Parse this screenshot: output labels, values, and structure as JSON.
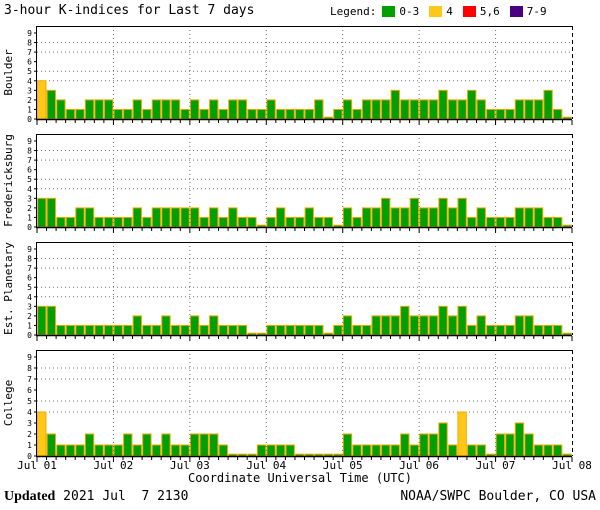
{
  "chart_data": {
    "type": "bar",
    "title": "3-hour K-indices for Last 7 days",
    "xlabel": "Coordinate Universal Time (UTC)",
    "x_tick_labels": [
      "Jul 01",
      "Jul 02",
      "Jul 03",
      "Jul 04",
      "Jul 05",
      "Jul 06",
      "Jul 07",
      "Jul 08"
    ],
    "y_tick_labels": [
      "0",
      "1",
      "2",
      "3",
      "4",
      "5",
      "6",
      "7",
      "8",
      "9"
    ],
    "ylim": [
      0,
      9
    ],
    "days": 7,
    "bars_per_day": 8,
    "interval_hours": 3,
    "grid": {
      "dotted_y_levels": [
        4,
        5,
        7,
        8
      ],
      "vertical_day_lines": true
    },
    "legend_title": "Legend:",
    "legend_position": "top-right",
    "legend": [
      {
        "label": "0-3",
        "color": "#00A000"
      },
      {
        "label": "4",
        "color": "#FFC818"
      },
      {
        "label": "5,6",
        "color": "#FF0000"
      },
      {
        "label": "7-9",
        "color": "#4B0082"
      }
    ],
    "bar_outline_color": "#F0A800",
    "series": [
      {
        "station": "Boulder",
        "values": [
          4,
          3,
          2,
          1,
          1,
          2,
          2,
          2,
          1,
          1,
          2,
          1,
          2,
          2,
          2,
          1,
          2,
          1,
          2,
          1,
          2,
          2,
          1,
          1,
          2,
          1,
          1,
          1,
          1,
          2,
          0,
          1,
          2,
          1,
          2,
          2,
          2,
          3,
          2,
          2,
          2,
          2,
          3,
          2,
          2,
          3,
          2,
          1,
          1,
          1,
          2,
          2,
          2,
          3,
          1,
          0
        ]
      },
      {
        "station": "Fredericksburg",
        "values": [
          3,
          3,
          1,
          1,
          2,
          2,
          1,
          1,
          1,
          1,
          2,
          1,
          2,
          2,
          2,
          2,
          2,
          1,
          2,
          1,
          2,
          1,
          1,
          0,
          1,
          2,
          1,
          1,
          2,
          1,
          1,
          0,
          2,
          1,
          2,
          2,
          3,
          2,
          2,
          3,
          2,
          2,
          3,
          2,
          3,
          1,
          2,
          1,
          1,
          1,
          2,
          2,
          2,
          1,
          1,
          0
        ]
      },
      {
        "station": "Est. Planetary",
        "values": [
          3,
          3,
          1,
          1,
          1,
          1,
          1,
          1,
          1,
          1,
          2,
          1,
          1,
          2,
          1,
          1,
          2,
          1,
          2,
          1,
          1,
          1,
          0,
          0,
          1,
          1,
          1,
          1,
          1,
          1,
          0,
          1,
          2,
          1,
          1,
          2,
          2,
          2,
          3,
          2,
          2,
          2,
          3,
          2,
          3,
          1,
          2,
          1,
          1,
          1,
          2,
          2,
          1,
          1,
          1,
          0
        ]
      },
      {
        "station": "College",
        "values": [
          4,
          2,
          1,
          1,
          1,
          2,
          1,
          1,
          1,
          2,
          1,
          2,
          1,
          2,
          1,
          1,
          2,
          2,
          2,
          1,
          0,
          0,
          0,
          1,
          1,
          1,
          1,
          0,
          0,
          0,
          0,
          0,
          2,
          1,
          1,
          1,
          1,
          1,
          2,
          1,
          2,
          2,
          3,
          1,
          4,
          1,
          1,
          0,
          2,
          2,
          3,
          2,
          1,
          1,
          1,
          0
        ]
      }
    ]
  },
  "footer": {
    "updated_label": "Updated",
    "updated_value": " 2021 Jul  7 2130",
    "credit": "NOAA/SWPC Boulder, CO USA"
  }
}
